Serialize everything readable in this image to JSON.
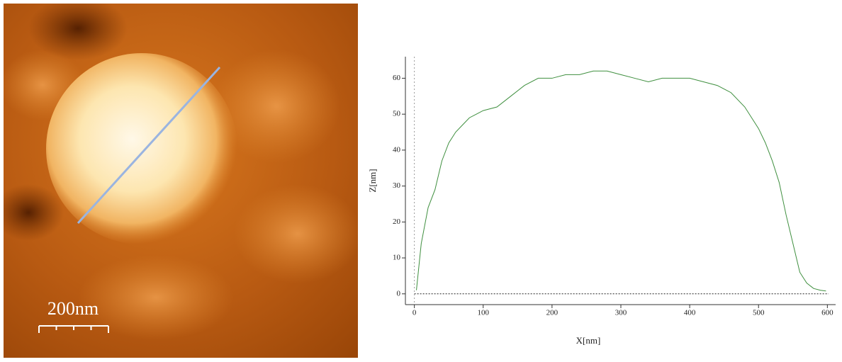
{
  "scale_bar": {
    "label": "200nm"
  },
  "chart_data": {
    "type": "line",
    "xlabel": "X[nm]",
    "ylabel": "Z[nm]",
    "x": [
      3,
      10,
      20,
      30,
      40,
      50,
      60,
      70,
      80,
      90,
      100,
      120,
      140,
      160,
      180,
      200,
      220,
      240,
      260,
      280,
      300,
      320,
      340,
      360,
      380,
      400,
      420,
      440,
      460,
      480,
      500,
      510,
      520,
      530,
      540,
      550,
      560,
      570,
      580,
      590,
      598
    ],
    "series": [
      {
        "name": "profile",
        "color": "#3f8f3f",
        "values": [
          1,
          14,
          24,
          29,
          37,
          42,
          45,
          47,
          49,
          50,
          51,
          52,
          55,
          58,
          60,
          60,
          61,
          61,
          62,
          62,
          61,
          60,
          59,
          60,
          60,
          60,
          59,
          58,
          56,
          52,
          46,
          42,
          37,
          31,
          22,
          14,
          6,
          3,
          1.5,
          1,
          0.8
        ]
      }
    ],
    "xlim": [
      -13,
      612
    ],
    "ylim": [
      -3,
      66
    ],
    "xticks": [
      0,
      100,
      200,
      300,
      400,
      500,
      600
    ],
    "yticks": [
      0,
      10,
      20,
      30,
      40,
      50,
      60
    ],
    "zero_line": true,
    "legend": false
  }
}
